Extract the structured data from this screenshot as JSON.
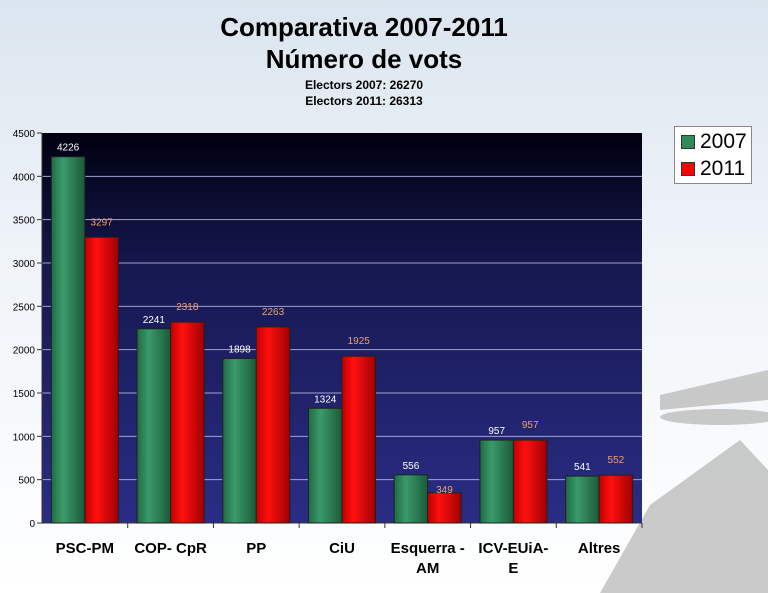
{
  "chart_data": {
    "type": "bar",
    "title": "Comparativa 2007-2011",
    "subtitle": "Número de vots",
    "notes": [
      "Electors 2007: 26270",
      "Electors 2011: 26313"
    ],
    "categories": [
      [
        "PSC-PM"
      ],
      [
        "COP- CpR"
      ],
      [
        "PP"
      ],
      [
        "CiU"
      ],
      [
        "Esquerra -",
        "AM"
      ],
      [
        "ICV-EUiA-",
        "E"
      ],
      [
        "Altres"
      ]
    ],
    "series": [
      {
        "name": "2007",
        "values": [
          4226,
          2241,
          1898,
          1324,
          556,
          957,
          541
        ],
        "color": "#2e8b57",
        "label_color": "#ffffff"
      },
      {
        "name": "2011",
        "values": [
          3297,
          2318,
          2263,
          1925,
          349,
          957,
          552
        ],
        "color": "#ff0000",
        "label_color": "#f0a070"
      }
    ],
    "ylim": [
      0,
      4500
    ],
    "yticks": [
      0,
      500,
      1000,
      1500,
      2000,
      2500,
      3000,
      3500,
      4000,
      4500
    ],
    "grid": true,
    "legend": "top-right",
    "plot_background": [
      "#000010",
      "#2a2d85"
    ]
  }
}
